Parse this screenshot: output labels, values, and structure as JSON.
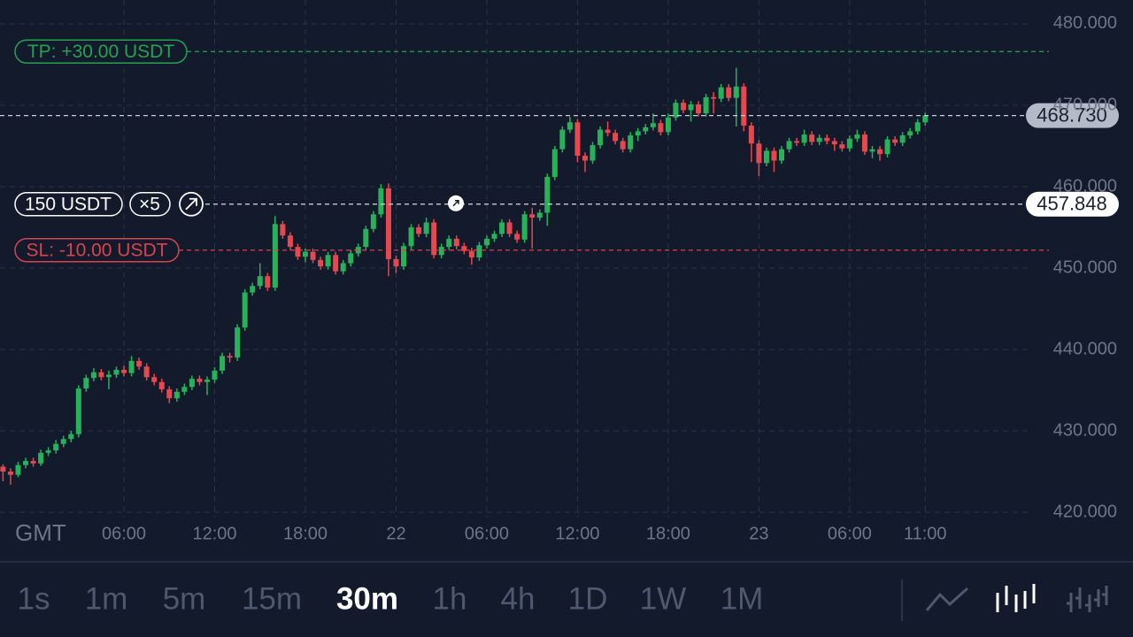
{
  "chart_data": {
    "type": "candlestick",
    "timezone": "GMT",
    "categories": [
      null,
      null,
      null,
      null,
      null,
      null,
      null,
      null,
      null,
      null,
      null,
      null,
      null,
      null,
      null,
      null,
      "06:00",
      null,
      null,
      null,
      null,
      null,
      null,
      null,
      null,
      null,
      null,
      null,
      "12:00",
      null,
      null,
      null,
      null,
      null,
      null,
      null,
      null,
      null,
      null,
      null,
      "18:00",
      null,
      null,
      null,
      null,
      null,
      null,
      null,
      null,
      null,
      null,
      null,
      "22",
      null,
      null,
      null,
      null,
      null,
      null,
      null,
      null,
      null,
      null,
      null,
      "06:00",
      null,
      null,
      null,
      null,
      null,
      null,
      null,
      null,
      null,
      null,
      null,
      "12:00",
      null,
      null,
      null,
      null,
      null,
      null,
      null,
      null,
      null,
      null,
      null,
      "18:00",
      null,
      null,
      null,
      null,
      null,
      null,
      null,
      null,
      null,
      null,
      null,
      "23",
      null,
      null,
      null,
      null,
      null,
      null,
      null,
      null,
      null,
      null,
      null,
      "06:00",
      null,
      null,
      null,
      null,
      null,
      null,
      null,
      null,
      null,
      "11:00"
    ],
    "open": [
      425.6,
      425.0,
      424.6,
      425.8,
      426.3,
      426.0,
      427.3,
      427.6,
      428.4,
      429.0,
      429.6,
      435.2,
      436.5,
      437.2,
      436.6,
      436.9,
      437.5,
      437.1,
      438.6,
      437.9,
      436.6,
      436.0,
      435.1,
      434.0,
      434.8,
      435.4,
      436.4,
      436.0,
      436.3,
      437.4,
      439.2,
      439.0,
      442.7,
      447.0,
      447.8,
      449.0,
      447.6,
      455.4,
      454.0,
      452.6,
      451.4,
      452.0,
      451.0,
      450.2,
      451.6,
      449.6,
      450.6,
      451.8,
      452.6,
      454.8,
      456.6,
      459.8,
      451.1,
      450.2,
      452.7,
      455.0,
      454.2,
      455.6,
      451.6,
      452.6,
      453.6,
      452.7,
      452.1,
      451.3,
      452.8,
      453.6,
      454.2,
      455.6,
      454.2,
      453.5,
      456.6,
      456.2,
      456.8,
      461.2,
      464.6,
      467.0,
      467.9,
      463.8,
      463.2,
      465.1,
      467.0,
      466.6,
      465.6,
      464.6,
      466.3,
      466.8,
      467.3,
      467.8,
      466.7,
      468.5,
      470.3,
      469.4,
      470.1,
      469.0,
      471.0,
      470.8,
      472.2,
      470.9,
      472.3,
      467.5,
      465.3,
      462.9,
      464.4,
      463.2,
      464.6,
      465.6,
      465.4,
      466.4,
      465.5,
      466.0,
      465.6,
      465.2,
      464.7,
      465.9,
      466.4,
      464.3,
      464.6,
      464.0,
      465.8,
      465.4,
      466.3,
      466.8,
      467.9
    ],
    "close": [
      425.0,
      424.6,
      425.8,
      426.3,
      426.0,
      427.3,
      427.6,
      428.4,
      429.0,
      429.6,
      435.2,
      436.5,
      437.2,
      436.6,
      436.9,
      437.5,
      437.1,
      438.6,
      437.9,
      436.6,
      436.0,
      435.1,
      434.0,
      434.8,
      435.4,
      436.4,
      436.0,
      436.3,
      437.4,
      439.2,
      439.0,
      442.7,
      447.0,
      447.8,
      449.0,
      447.6,
      455.4,
      454.0,
      452.6,
      451.4,
      452.0,
      451.0,
      450.2,
      451.6,
      449.6,
      450.6,
      451.8,
      452.6,
      454.8,
      456.6,
      459.8,
      451.1,
      450.2,
      452.7,
      455.0,
      454.2,
      455.6,
      451.6,
      452.6,
      453.6,
      452.7,
      452.1,
      451.3,
      452.8,
      453.6,
      454.2,
      455.6,
      454.2,
      453.5,
      456.6,
      456.2,
      456.8,
      461.2,
      464.6,
      467.0,
      467.9,
      463.8,
      463.2,
      465.1,
      467.0,
      466.6,
      465.6,
      464.6,
      466.3,
      466.8,
      467.3,
      467.8,
      466.7,
      468.5,
      470.3,
      469.4,
      470.1,
      469.0,
      471.0,
      470.8,
      472.2,
      470.9,
      472.3,
      467.5,
      465.3,
      462.9,
      464.4,
      463.2,
      464.6,
      465.6,
      465.4,
      466.4,
      465.5,
      466.0,
      465.6,
      465.2,
      464.7,
      465.9,
      466.4,
      464.3,
      464.6,
      464.0,
      465.8,
      465.4,
      466.3,
      466.8,
      467.9,
      468.73
    ],
    "high": [
      425.9,
      425.4,
      426.2,
      426.7,
      426.7,
      427.7,
      428.0,
      428.9,
      429.4,
      430.0,
      435.6,
      436.9,
      437.7,
      437.6,
      437.4,
      437.9,
      438.0,
      439.2,
      439.0,
      438.3,
      437.0,
      436.4,
      435.5,
      435.2,
      435.8,
      436.8,
      436.8,
      436.7,
      437.8,
      439.6,
      439.6,
      443.1,
      447.4,
      448.2,
      450.6,
      449.4,
      456.4,
      455.8,
      454.4,
      453.0,
      452.4,
      452.4,
      451.4,
      452.0,
      452.0,
      451.0,
      452.2,
      453.0,
      455.2,
      457.0,
      460.3,
      460.4,
      451.5,
      453.1,
      455.4,
      455.4,
      456.2,
      456.0,
      453.0,
      454.0,
      454.0,
      453.1,
      452.5,
      453.2,
      454.0,
      454.6,
      456.0,
      456.0,
      454.6,
      457.0,
      457.4,
      457.2,
      461.6,
      465.0,
      467.4,
      468.6,
      468.3,
      464.2,
      465.5,
      467.4,
      468.0,
      467.0,
      466.0,
      466.7,
      467.2,
      467.7,
      469.0,
      468.2,
      469.0,
      470.7,
      470.7,
      470.5,
      470.5,
      471.4,
      471.6,
      472.6,
      472.6,
      474.6,
      472.7,
      467.9,
      465.7,
      464.8,
      464.8,
      465.0,
      466.0,
      466.0,
      467.0,
      466.8,
      466.4,
      466.4,
      466.0,
      465.6,
      466.3,
      467.0,
      466.8,
      465.0,
      465.0,
      466.2,
      466.2,
      466.7,
      467.2,
      468.3,
      469.1
    ],
    "low": [
      423.8,
      423.4,
      424.3,
      425.4,
      425.6,
      425.7,
      426.9,
      427.2,
      428.0,
      428.6,
      429.2,
      434.8,
      436.1,
      436.2,
      435.1,
      436.5,
      436.7,
      436.7,
      437.5,
      436.2,
      435.6,
      434.7,
      433.4,
      433.6,
      434.4,
      435.0,
      435.6,
      434.4,
      435.9,
      437.0,
      438.4,
      438.6,
      442.3,
      446.6,
      447.4,
      447.2,
      447.2,
      453.6,
      452.2,
      451.0,
      450.7,
      450.6,
      449.8,
      449.8,
      449.2,
      449.2,
      450.2,
      451.4,
      452.2,
      454.4,
      456.2,
      449.0,
      449.4,
      449.8,
      452.3,
      453.8,
      453.8,
      451.2,
      451.2,
      452.2,
      452.3,
      451.7,
      450.4,
      450.9,
      452.4,
      453.2,
      453.8,
      453.8,
      453.1,
      453.1,
      452.4,
      455.8,
      455.2,
      460.8,
      464.2,
      466.6,
      463.0,
      461.8,
      462.8,
      464.7,
      466.2,
      465.2,
      464.2,
      464.2,
      465.6,
      466.4,
      466.9,
      466.3,
      466.3,
      468.1,
      469.0,
      468.0,
      468.6,
      468.6,
      469.0,
      470.4,
      470.5,
      467.4,
      466.8,
      463.0,
      461.3,
      462.5,
      461.8,
      462.8,
      464.2,
      465.0,
      465.0,
      465.1,
      465.1,
      465.2,
      464.4,
      464.3,
      464.3,
      465.5,
      463.9,
      463.5,
      463.2,
      463.6,
      465.0,
      465.0,
      465.9,
      466.4,
      467.5
    ],
    "up_color": "#27b25a",
    "down_color": "#e5484f",
    "ylim": [
      419.35,
      482.93
    ],
    "yticks": [
      {
        "value": 420,
        "label": "420.000"
      },
      {
        "value": 430,
        "label": "430.000"
      },
      {
        "value": 440,
        "label": "440.000"
      },
      {
        "value": 450,
        "label": "450.000"
      },
      {
        "value": 460,
        "label": "460.000"
      },
      {
        "value": 470,
        "label": "470.000"
      },
      {
        "value": 480,
        "label": "480.000"
      }
    ],
    "grid": true,
    "last_price": {
      "value": 468.73,
      "label": "468.730"
    },
    "entry_price": 457.848,
    "position": {
      "size": "150 USDT",
      "leverage": "×5"
    },
    "take_profit": {
      "label": "TP: +30.00 USDT",
      "price": 476.6
    },
    "stop_loss": {
      "label": "SL: -10.00 USDT",
      "price": 452.2
    }
  },
  "toolbar": {
    "timeframes": [
      "1s",
      "1m",
      "5m",
      "15m",
      "30m",
      "1h",
      "4h",
      "1D",
      "1W",
      "1M"
    ],
    "selected": 4
  }
}
